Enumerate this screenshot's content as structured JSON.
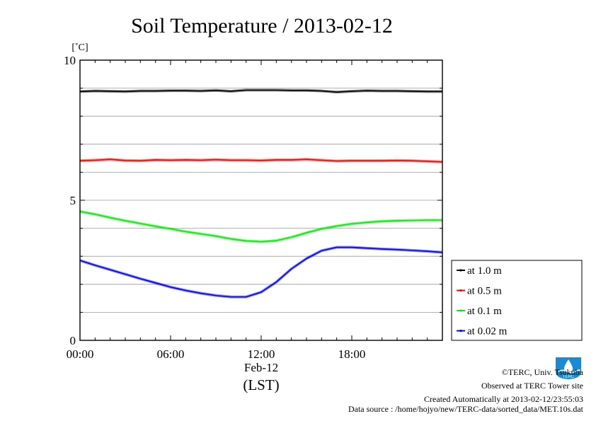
{
  "chart_data": {
    "type": "line",
    "title": "Soil Temperature / 2013-02-12",
    "unit_label": "[˚C]",
    "xlabel": "(LST)",
    "x_date_label": "Feb-12",
    "x_ticks": [
      "00:00",
      "06:00",
      "12:00",
      "18:00"
    ],
    "y_ticks": [
      "0",
      "5",
      "10"
    ],
    "ylim": [
      0,
      10
    ],
    "xlim_hours": [
      0,
      24
    ],
    "grid": true,
    "legend_position": "right",
    "x_hours": [
      0,
      1,
      2,
      3,
      4,
      5,
      6,
      7,
      8,
      9,
      10,
      11,
      12,
      13,
      14,
      15,
      16,
      17,
      18,
      19,
      20,
      21,
      22,
      23,
      24
    ],
    "series": [
      {
        "name": "at 1.0 m",
        "color": "#000000",
        "values": [
          8.88,
          8.9,
          8.89,
          8.88,
          8.9,
          8.9,
          8.91,
          8.91,
          8.9,
          8.92,
          8.89,
          8.93,
          8.93,
          8.93,
          8.92,
          8.92,
          8.9,
          8.86,
          8.89,
          8.91,
          8.9,
          8.9,
          8.89,
          8.88,
          8.88
        ]
      },
      {
        "name": "at 0.5 m",
        "color": "#ff0000",
        "values": [
          6.41,
          6.43,
          6.46,
          6.42,
          6.41,
          6.44,
          6.43,
          6.44,
          6.43,
          6.45,
          6.43,
          6.43,
          6.42,
          6.44,
          6.44,
          6.46,
          6.43,
          6.4,
          6.41,
          6.41,
          6.41,
          6.42,
          6.41,
          6.39,
          6.37
        ]
      },
      {
        "name": "at 0.1 m",
        "color": "#00ee00",
        "values": [
          4.6,
          4.5,
          4.38,
          4.27,
          4.17,
          4.07,
          3.98,
          3.88,
          3.8,
          3.72,
          3.62,
          3.55,
          3.52,
          3.56,
          3.68,
          3.84,
          3.98,
          4.08,
          4.16,
          4.21,
          4.25,
          4.27,
          4.28,
          4.29,
          4.29
        ]
      },
      {
        "name": "at 0.02 m",
        "color": "#0000ff",
        "values": [
          2.85,
          2.68,
          2.52,
          2.36,
          2.2,
          2.05,
          1.9,
          1.78,
          1.68,
          1.6,
          1.55,
          1.55,
          1.72,
          2.08,
          2.55,
          2.92,
          3.2,
          3.32,
          3.32,
          3.29,
          3.26,
          3.24,
          3.21,
          3.18,
          3.14
        ]
      }
    ]
  },
  "footer": {
    "credit": "©TERC, Univ. Tsukuba",
    "observed": "Observed at TERC Tower site",
    "created": "Created Automatically at 2013-02-12/23:55:03",
    "source": "Data source : /home/hojyo/new/TERC-data/sorted_data/MET.10s.dat"
  },
  "logo": {
    "name": "terc-logo-icon",
    "color": "#1a8ad4"
  }
}
